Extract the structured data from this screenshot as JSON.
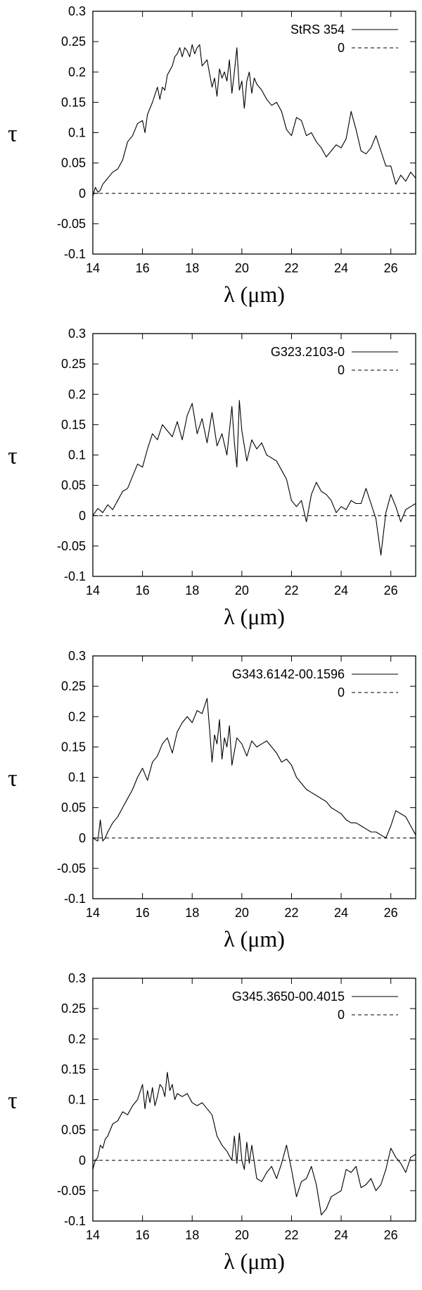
{
  "chart_data": [
    {
      "type": "line",
      "xlabel": "λ (μm)",
      "ylabel": "τ",
      "xlim": [
        14,
        27
      ],
      "ylim": [
        -0.1,
        0.3
      ],
      "xticks": [
        "14",
        "16",
        "18",
        "20",
        "22",
        "24",
        "26"
      ],
      "yticks": [
        "-0.1",
        "-0.05",
        "0",
        "0.05",
        "0.1",
        "0.15",
        "0.2",
        "0.25",
        "0.3"
      ],
      "legend_position": "top-right",
      "series": [
        {
          "name": "StRS 354",
          "style": "solid",
          "x": [
            14.0,
            14.1,
            14.2,
            14.3,
            14.4,
            14.5,
            14.6,
            14.8,
            15.0,
            15.2,
            15.4,
            15.6,
            15.8,
            16.0,
            16.1,
            16.2,
            16.4,
            16.6,
            16.7,
            16.8,
            16.9,
            17.0,
            17.2,
            17.3,
            17.4,
            17.5,
            17.6,
            17.7,
            17.8,
            17.9,
            18.0,
            18.1,
            18.2,
            18.3,
            18.4,
            18.6,
            18.8,
            18.9,
            19.0,
            19.1,
            19.2,
            19.3,
            19.4,
            19.5,
            19.6,
            19.7,
            19.8,
            19.9,
            20.0,
            20.1,
            20.2,
            20.3,
            20.4,
            20.5,
            20.6,
            20.8,
            21.0,
            21.2,
            21.4,
            21.6,
            21.8,
            22.0,
            22.2,
            22.4,
            22.6,
            22.8,
            23.0,
            23.2,
            23.4,
            23.6,
            23.8,
            24.0,
            24.2,
            24.4,
            24.6,
            24.8,
            25.0,
            25.2,
            25.4,
            25.6,
            25.8,
            26.0,
            26.2,
            26.4,
            26.6,
            26.8,
            27.0
          ],
          "y": [
            -0.005,
            0.01,
            0.002,
            0.005,
            0.015,
            0.02,
            0.025,
            0.035,
            0.04,
            0.055,
            0.085,
            0.095,
            0.115,
            0.12,
            0.1,
            0.13,
            0.15,
            0.175,
            0.155,
            0.175,
            0.17,
            0.195,
            0.21,
            0.225,
            0.23,
            0.24,
            0.225,
            0.24,
            0.235,
            0.225,
            0.245,
            0.23,
            0.24,
            0.245,
            0.21,
            0.22,
            0.175,
            0.19,
            0.16,
            0.205,
            0.19,
            0.2,
            0.185,
            0.22,
            0.165,
            0.2,
            0.24,
            0.17,
            0.185,
            0.14,
            0.185,
            0.2,
            0.165,
            0.19,
            0.18,
            0.17,
            0.155,
            0.145,
            0.15,
            0.135,
            0.105,
            0.095,
            0.125,
            0.12,
            0.095,
            0.1,
            0.085,
            0.075,
            0.06,
            0.07,
            0.08,
            0.075,
            0.09,
            0.135,
            0.105,
            0.07,
            0.065,
            0.075,
            0.095,
            0.07,
            0.045,
            0.045,
            0.015,
            0.03,
            0.02,
            0.035,
            0.025
          ]
        },
        {
          "name": "0",
          "style": "dashed",
          "x": [
            14,
            27
          ],
          "y": [
            0,
            0
          ]
        }
      ]
    },
    {
      "type": "line",
      "xlabel": "λ (μm)",
      "ylabel": "τ",
      "xlim": [
        14,
        27
      ],
      "ylim": [
        -0.1,
        0.3
      ],
      "xticks": [
        "14",
        "16",
        "18",
        "20",
        "22",
        "24",
        "26"
      ],
      "yticks": [
        "-0.1",
        "-0.05",
        "0",
        "0.05",
        "0.1",
        "0.15",
        "0.2",
        "0.25",
        "0.3"
      ],
      "legend_position": "top-right",
      "series": [
        {
          "name": "G323.2103-0",
          "style": "solid",
          "x": [
            14.0,
            14.2,
            14.4,
            14.6,
            14.8,
            15.0,
            15.2,
            15.4,
            15.6,
            15.8,
            16.0,
            16.2,
            16.4,
            16.6,
            16.8,
            17.0,
            17.2,
            17.4,
            17.6,
            17.8,
            18.0,
            18.2,
            18.4,
            18.6,
            18.8,
            19.0,
            19.2,
            19.4,
            19.6,
            19.7,
            19.8,
            19.9,
            20.0,
            20.2,
            20.4,
            20.6,
            20.8,
            21.0,
            21.2,
            21.4,
            21.6,
            21.8,
            22.0,
            22.2,
            22.4,
            22.6,
            22.8,
            23.0,
            23.2,
            23.4,
            23.6,
            23.8,
            24.0,
            24.2,
            24.4,
            24.6,
            24.8,
            25.0,
            25.2,
            25.4,
            25.6,
            25.8,
            26.0,
            26.2,
            26.4,
            26.6,
            26.8,
            27.0
          ],
          "y": [
            0.0,
            0.012,
            0.005,
            0.018,
            0.01,
            0.025,
            0.04,
            0.045,
            0.065,
            0.085,
            0.08,
            0.11,
            0.135,
            0.125,
            0.15,
            0.14,
            0.13,
            0.155,
            0.125,
            0.165,
            0.185,
            0.135,
            0.16,
            0.12,
            0.17,
            0.115,
            0.135,
            0.1,
            0.18,
            0.12,
            0.08,
            0.19,
            0.14,
            0.09,
            0.125,
            0.11,
            0.12,
            0.1,
            0.095,
            0.09,
            0.075,
            0.06,
            0.025,
            0.015,
            0.025,
            -0.01,
            0.035,
            0.055,
            0.04,
            0.035,
            0.025,
            0.005,
            0.015,
            0.01,
            0.025,
            0.02,
            0.02,
            0.045,
            0.02,
            -0.005,
            -0.065,
            0.005,
            0.035,
            0.015,
            -0.01,
            0.01,
            0.015,
            0.02
          ]
        },
        {
          "name": "0",
          "style": "dashed",
          "x": [
            14,
            27
          ],
          "y": [
            0,
            0
          ]
        }
      ]
    },
    {
      "type": "line",
      "xlabel": "λ (μm)",
      "ylabel": "τ",
      "xlim": [
        14,
        27
      ],
      "ylim": [
        -0.1,
        0.3
      ],
      "xticks": [
        "14",
        "16",
        "18",
        "20",
        "22",
        "24",
        "26"
      ],
      "yticks": [
        "-0.1",
        "-0.05",
        "0",
        "0.05",
        "0.1",
        "0.15",
        "0.2",
        "0.25",
        "0.3"
      ],
      "legend_position": "top-right",
      "series": [
        {
          "name": "G343.6142-00.1596",
          "style": "solid",
          "x": [
            14.0,
            14.2,
            14.3,
            14.4,
            14.5,
            14.6,
            14.8,
            15.0,
            15.2,
            15.4,
            15.6,
            15.8,
            16.0,
            16.2,
            16.4,
            16.6,
            16.8,
            17.0,
            17.2,
            17.4,
            17.6,
            17.8,
            18.0,
            18.2,
            18.4,
            18.6,
            18.7,
            18.8,
            18.9,
            19.0,
            19.1,
            19.2,
            19.3,
            19.4,
            19.5,
            19.6,
            19.8,
            20.0,
            20.2,
            20.4,
            20.6,
            20.8,
            21.0,
            21.2,
            21.4,
            21.6,
            21.8,
            22.0,
            22.2,
            22.4,
            22.6,
            22.8,
            23.0,
            23.2,
            23.4,
            23.6,
            23.8,
            24.0,
            24.2,
            24.4,
            24.6,
            24.8,
            25.0,
            25.2,
            25.4,
            25.6,
            25.8,
            26.0,
            26.2,
            26.4,
            26.6,
            26.8,
            27.0
          ],
          "y": [
            0.0,
            -0.005,
            0.03,
            -0.005,
            0.0,
            0.01,
            0.025,
            0.035,
            0.05,
            0.065,
            0.08,
            0.1,
            0.115,
            0.095,
            0.125,
            0.135,
            0.155,
            0.165,
            0.14,
            0.175,
            0.19,
            0.2,
            0.19,
            0.21,
            0.205,
            0.23,
            0.18,
            0.125,
            0.17,
            0.155,
            0.195,
            0.13,
            0.165,
            0.15,
            0.185,
            0.12,
            0.165,
            0.155,
            0.135,
            0.16,
            0.15,
            0.155,
            0.16,
            0.15,
            0.14,
            0.125,
            0.13,
            0.12,
            0.1,
            0.09,
            0.08,
            0.075,
            0.07,
            0.065,
            0.06,
            0.05,
            0.045,
            0.04,
            0.03,
            0.025,
            0.025,
            0.02,
            0.015,
            0.01,
            0.01,
            0.005,
            0.0,
            0.02,
            0.045,
            0.04,
            0.035,
            0.02,
            0.005
          ]
        },
        {
          "name": "0",
          "style": "dashed",
          "x": [
            14,
            27
          ],
          "y": [
            0,
            0
          ]
        }
      ]
    },
    {
      "type": "line",
      "xlabel": "λ (μm)",
      "ylabel": "τ",
      "xlim": [
        14,
        27
      ],
      "ylim": [
        -0.1,
        0.3
      ],
      "xticks": [
        "14",
        "16",
        "18",
        "20",
        "22",
        "24",
        "26"
      ],
      "yticks": [
        "-0.1",
        "-0.05",
        "0",
        "0.05",
        "0.1",
        "0.15",
        "0.2",
        "0.25",
        "0.3"
      ],
      "legend_position": "top-right",
      "series": [
        {
          "name": "G345.3650-00.4015",
          "style": "solid",
          "x": [
            14.0,
            14.1,
            14.2,
            14.3,
            14.4,
            14.5,
            14.6,
            14.8,
            15.0,
            15.2,
            15.4,
            15.6,
            15.8,
            16.0,
            16.1,
            16.2,
            16.3,
            16.4,
            16.5,
            16.6,
            16.7,
            16.8,
            16.9,
            17.0,
            17.1,
            17.2,
            17.3,
            17.4,
            17.6,
            17.8,
            18.0,
            18.2,
            18.4,
            18.6,
            18.8,
            19.0,
            19.2,
            19.4,
            19.6,
            19.7,
            19.8,
            19.9,
            20.0,
            20.1,
            20.2,
            20.3,
            20.4,
            20.6,
            20.8,
            21.0,
            21.2,
            21.4,
            21.6,
            21.8,
            22.0,
            22.2,
            22.4,
            22.6,
            22.8,
            23.0,
            23.2,
            23.4,
            23.6,
            23.8,
            24.0,
            24.2,
            24.4,
            24.6,
            24.8,
            25.0,
            25.2,
            25.4,
            25.6,
            25.8,
            26.0,
            26.2,
            26.4,
            26.6,
            26.8,
            27.0
          ],
          "y": [
            -0.015,
            0.0,
            0.005,
            0.025,
            0.02,
            0.035,
            0.04,
            0.06,
            0.065,
            0.08,
            0.075,
            0.09,
            0.1,
            0.125,
            0.085,
            0.115,
            0.095,
            0.12,
            0.09,
            0.105,
            0.125,
            0.12,
            0.105,
            0.145,
            0.115,
            0.125,
            0.1,
            0.11,
            0.105,
            0.11,
            0.095,
            0.09,
            0.095,
            0.085,
            0.075,
            0.04,
            0.025,
            0.015,
            0.0,
            0.04,
            -0.005,
            0.045,
            0.0,
            -0.015,
            0.03,
            -0.005,
            0.025,
            -0.03,
            -0.035,
            -0.02,
            -0.01,
            -0.03,
            -0.005,
            0.025,
            -0.015,
            -0.06,
            -0.035,
            -0.03,
            -0.01,
            -0.04,
            -0.09,
            -0.08,
            -0.06,
            -0.055,
            -0.05,
            -0.015,
            -0.02,
            -0.01,
            -0.045,
            -0.04,
            -0.03,
            -0.05,
            -0.04,
            -0.015,
            0.02,
            0.005,
            -0.005,
            -0.02,
            0.005,
            0.01
          ]
        },
        {
          "name": "0",
          "style": "dashed",
          "x": [
            14,
            27
          ],
          "y": [
            0,
            0
          ]
        }
      ]
    }
  ]
}
